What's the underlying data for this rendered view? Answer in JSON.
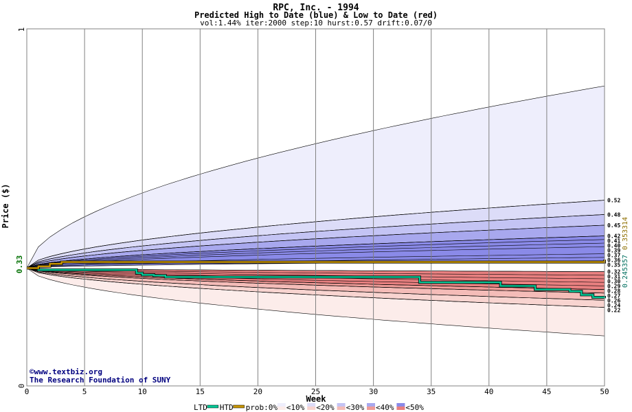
{
  "header": {
    "title": "RPC, Inc. - 1994",
    "subtitle": "Predicted High to Date (blue) &  Low to Date (red)",
    "params": "vol:1.44% iter:2000 step:10 hurst:0.57 drift:0.07/0"
  },
  "axes": {
    "ylabel": "Price ($)",
    "xlabel": "Week",
    "current_price_label": "0.33",
    "y_top_label": "1",
    "y_bottom_label": "0"
  },
  "credits": {
    "site": "©www.textbiz.org",
    "org": "The Research Foundation of SUNY"
  },
  "right_values": {
    "ltd": "0.245357",
    "htd": "0.353314"
  },
  "legend": {
    "ltd_label": "LTD",
    "htd_label": "HTD",
    "prob_label": "prob:0%",
    "buckets": [
      "<10%",
      "<20%",
      "<30%",
      "<40%",
      "<50%"
    ]
  },
  "colors": {
    "background": "#ffffff",
    "grid": "#808080",
    "ltd_line": "#00c896",
    "htd_line": "#c89600",
    "blue_bands": [
      "#eeeefc",
      "#dcdcf8",
      "#c4c4f4",
      "#a8a8ee",
      "#8a8ae8"
    ],
    "red_bands": [
      "#fcecea",
      "#f8d4d0",
      "#f4bcb8",
      "#ee9c98",
      "#e88080"
    ],
    "ltd_value": "#006f5f",
    "htd_value": "#8f6f00"
  },
  "chart_data": {
    "type": "area",
    "title": "RPC, Inc. - 1994",
    "subtitle": "Predicted High to Date (blue) &  Low to Date (red)",
    "xlabel": "Week",
    "ylabel": "Price ($)",
    "xlim": [
      0,
      50
    ],
    "ylim": [
      0,
      1
    ],
    "x_ticks": [
      0,
      5,
      10,
      15,
      20,
      25,
      30,
      35,
      40,
      45,
      50
    ],
    "start_price": 0.33,
    "high_quantile_levels_at_end": [
      {
        "label": "0.52",
        "value": 0.52
      },
      {
        "label": "0.48",
        "value": 0.48
      },
      {
        "label": "0.45",
        "value": 0.45
      },
      {
        "label": "0.42",
        "value": 0.42
      },
      {
        "label": "0.41",
        "value": 0.41
      },
      {
        "label": "0.40",
        "value": 0.4
      },
      {
        "label": "0.39",
        "value": 0.39
      },
      {
        "label": "0.37",
        "value": 0.37
      },
      {
        "label": "0.36",
        "value": 0.36
      },
      {
        "label": "0.35",
        "value": 0.35
      }
    ],
    "low_quantile_levels_at_end": [
      {
        "label": "0.32",
        "value": 0.32
      },
      {
        "label": "0.31",
        "value": 0.31
      },
      {
        "label": "0.30",
        "value": 0.3
      },
      {
        "label": "0.29",
        "value": 0.29
      },
      {
        "label": "0.28",
        "value": 0.28
      },
      {
        "label": "0.27",
        "value": 0.27
      },
      {
        "label": "0.26",
        "value": 0.26
      },
      {
        "label": "0.24",
        "value": 0.24
      },
      {
        "label": "0.22",
        "value": 0.22
      }
    ],
    "outer_high_at_end": 0.84,
    "outer_low_at_end": 0.14,
    "series": [
      {
        "name": "LTD",
        "points": [
          [
            0,
            0.33
          ],
          [
            1,
            0.325
          ],
          [
            4,
            0.325
          ],
          [
            9,
            0.325
          ],
          [
            9.5,
            0.316
          ],
          [
            10,
            0.311
          ],
          [
            11,
            0.309
          ],
          [
            12,
            0.305
          ],
          [
            30,
            0.305
          ],
          [
            34,
            0.29
          ],
          [
            41,
            0.28
          ],
          [
            44,
            0.27
          ],
          [
            47,
            0.265
          ],
          [
            48,
            0.255
          ],
          [
            49,
            0.248
          ],
          [
            50,
            0.245357
          ]
        ]
      },
      {
        "name": "HTD",
        "points": [
          [
            0,
            0.33
          ],
          [
            1,
            0.335
          ],
          [
            2,
            0.342
          ],
          [
            3,
            0.347
          ],
          [
            50,
            0.353314
          ]
        ]
      }
    ],
    "grid": true,
    "legend_position": "bottom"
  }
}
